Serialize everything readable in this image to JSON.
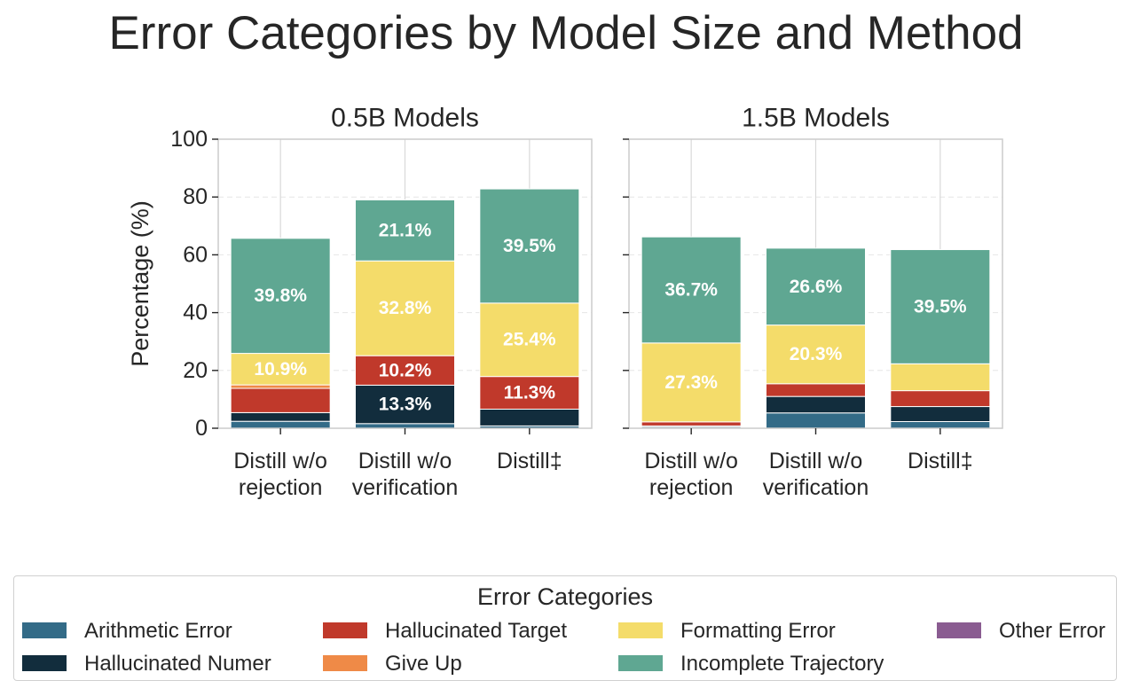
{
  "title": "Error Categories by Model Size and Method",
  "legend": {
    "title": "Error Categories",
    "items": [
      {
        "label": "Arithmetic Error",
        "color": "#336b87"
      },
      {
        "label": "Hallucinated Numer",
        "color": "#122d3d"
      },
      {
        "label": "Hallucinated Target",
        "color": "#c0392b"
      },
      {
        "label": "Give Up",
        "color": "#ef8a47"
      },
      {
        "label": "Formatting Error",
        "color": "#f4dc6a"
      },
      {
        "label": "Incomplete Trajectory",
        "color": "#5fa792"
      },
      {
        "label": "Other Error",
        "color": "#8a5c91"
      }
    ]
  },
  "chart_data": [
    {
      "type": "bar",
      "stacked": true,
      "title": "0.5B Models",
      "ylabel": "Percentage (%)",
      "ylim": [
        0,
        100
      ],
      "yticks": [
        0,
        20,
        40,
        60,
        80,
        100
      ],
      "grid": true,
      "categories": [
        "Distill w/o\nrejection",
        "Distill w/o\nverification",
        "Distill‡"
      ],
      "series": [
        {
          "name": "Arithmetic Error",
          "values": [
            2.4,
            1.6,
            0.8
          ]
        },
        {
          "name": "Hallucinated Numer",
          "values": [
            3.0,
            13.3,
            5.8
          ]
        },
        {
          "name": "Hallucinated Target",
          "values": [
            8.4,
            10.2,
            11.3
          ]
        },
        {
          "name": "Give Up",
          "values": [
            1.2,
            0.0,
            0.0
          ]
        },
        {
          "name": "Formatting Error",
          "values": [
            10.9,
            32.8,
            25.4
          ]
        },
        {
          "name": "Incomplete Trajectory",
          "values": [
            39.8,
            21.1,
            39.5
          ]
        },
        {
          "name": "Other Error",
          "values": [
            0.0,
            0.0,
            0.0
          ]
        }
      ],
      "data_labels": [
        {
          "bar": 0,
          "series": "Formatting Error",
          "text": "10.9%"
        },
        {
          "bar": 0,
          "series": "Incomplete Trajectory",
          "text": "39.8%"
        },
        {
          "bar": 1,
          "series": "Hallucinated Numer",
          "text": "13.3%"
        },
        {
          "bar": 1,
          "series": "Hallucinated Target",
          "text": "10.2%"
        },
        {
          "bar": 1,
          "series": "Formatting Error",
          "text": "32.8%"
        },
        {
          "bar": 1,
          "series": "Incomplete Trajectory",
          "text": "21.1%"
        },
        {
          "bar": 2,
          "series": "Hallucinated Target",
          "text": "11.3%"
        },
        {
          "bar": 2,
          "series": "Formatting Error",
          "text": "25.4%"
        },
        {
          "bar": 2,
          "series": "Incomplete Trajectory",
          "text": "39.5%"
        }
      ]
    },
    {
      "type": "bar",
      "stacked": true,
      "title": "1.5B Models",
      "ylim": [
        0,
        100
      ],
      "yticks": [
        0,
        20,
        40,
        60,
        80,
        100
      ],
      "grid": true,
      "categories": [
        "Distill w/o\nrejection",
        "Distill w/o\nverification",
        "Distill‡"
      ],
      "series": [
        {
          "name": "Arithmetic Error",
          "values": [
            0.4,
            5.3,
            2.3
          ]
        },
        {
          "name": "Hallucinated Numer",
          "values": [
            0.4,
            5.7,
            5.2
          ]
        },
        {
          "name": "Hallucinated Target",
          "values": [
            1.4,
            4.4,
            5.5
          ]
        },
        {
          "name": "Give Up",
          "values": [
            0.0,
            0.0,
            0.0
          ]
        },
        {
          "name": "Formatting Error",
          "values": [
            27.3,
            20.3,
            9.3
          ]
        },
        {
          "name": "Incomplete Trajectory",
          "values": [
            36.7,
            26.6,
            39.5
          ]
        },
        {
          "name": "Other Error",
          "values": [
            0.0,
            0.0,
            0.0
          ]
        }
      ],
      "data_labels": [
        {
          "bar": 0,
          "series": "Formatting Error",
          "text": "27.3%"
        },
        {
          "bar": 0,
          "series": "Incomplete Trajectory",
          "text": "36.7%"
        },
        {
          "bar": 1,
          "series": "Formatting Error",
          "text": "20.3%"
        },
        {
          "bar": 1,
          "series": "Incomplete Trajectory",
          "text": "26.6%"
        },
        {
          "bar": 2,
          "series": "Incomplete Trajectory",
          "text": "39.5%"
        }
      ]
    }
  ]
}
